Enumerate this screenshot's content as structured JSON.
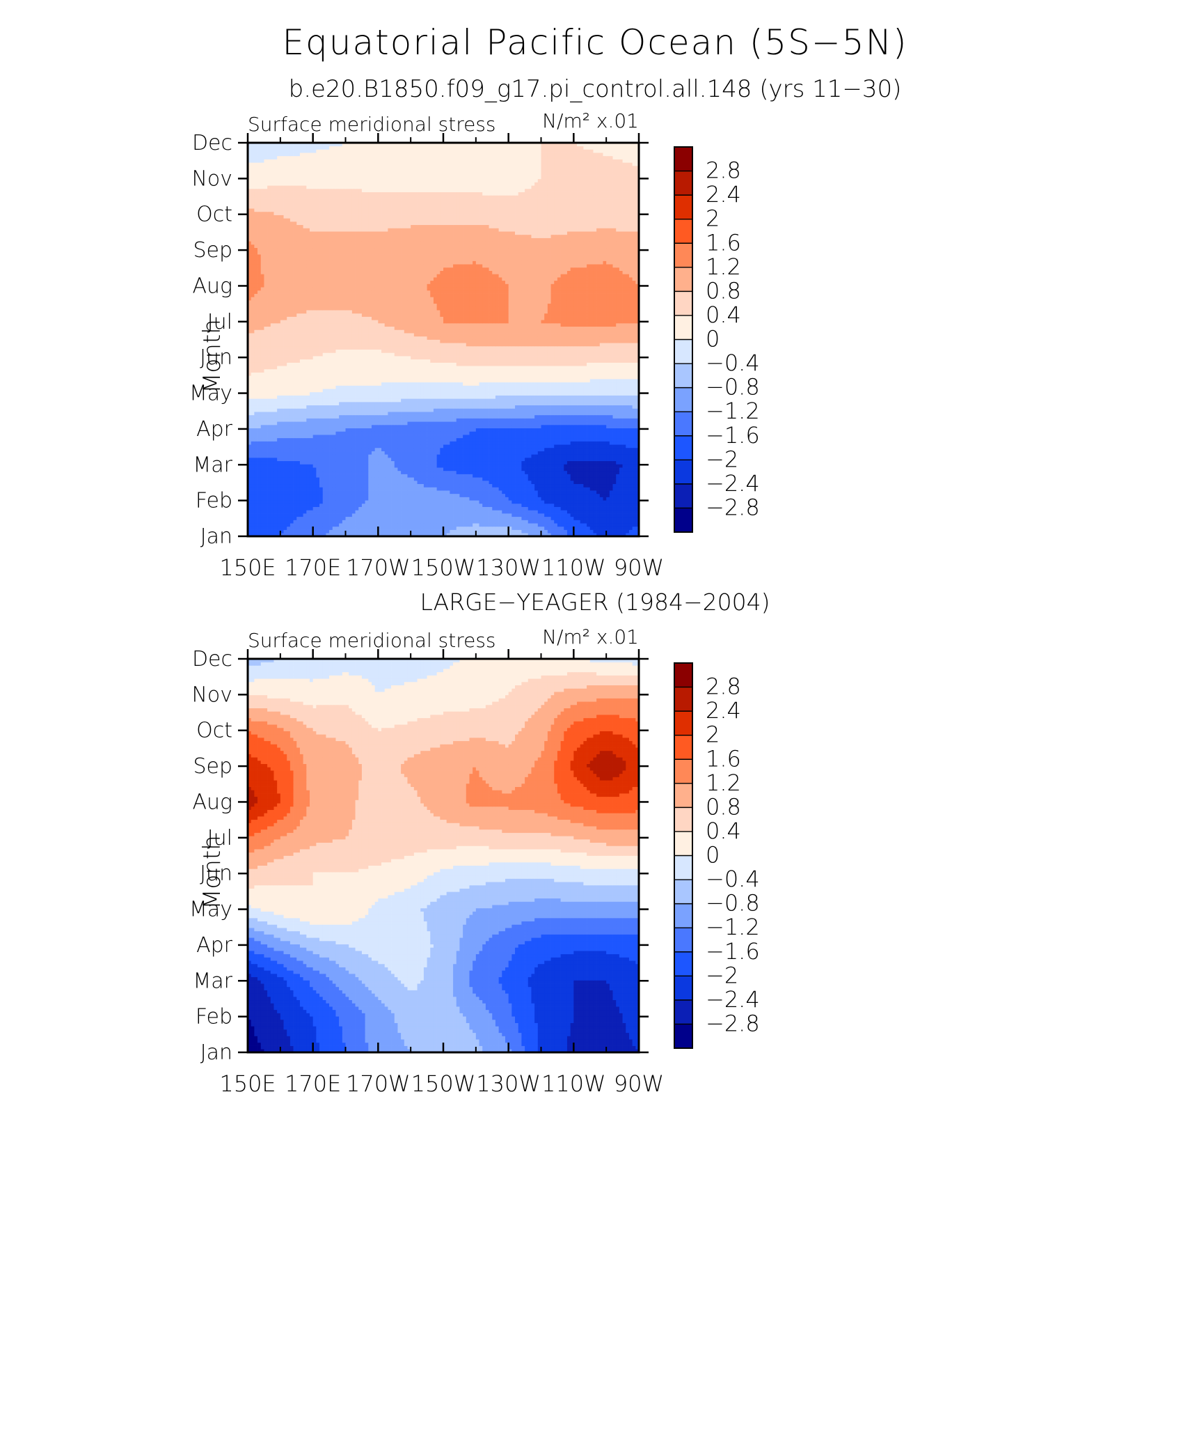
{
  "page": {
    "title": "Equatorial Pacific Ocean (5S−5N)"
  },
  "chart_data": [
    {
      "type": "heatmap",
      "subtitle": "b.e20.B1850.f09_g17.pi_control.all.148 (yrs 11−30)",
      "left_label": "Surface meridional stress",
      "units": "N/m² x.01",
      "ylabel": "Month",
      "xlabel": "",
      "x_ticks": [
        "150E",
        "170E",
        "170W",
        "150W",
        "130W",
        "110W",
        "90W"
      ],
      "x": [
        150,
        160,
        170,
        180,
        190,
        200,
        210,
        220,
        230,
        240,
        250,
        260,
        270
      ],
      "y_ticks": [
        "Jan",
        "Feb",
        "Mar",
        "Apr",
        "May",
        "Jun",
        "Jul",
        "Aug",
        "Sep",
        "Oct",
        "Nov",
        "Dec"
      ],
      "z": [
        [
          -1.7,
          -1.6,
          -1.3,
          -1.0,
          -0.9,
          -0.9,
          -0.8,
          -0.6,
          -0.5,
          -0.9,
          -1.7,
          -2.1,
          -1.9
        ],
        [
          -1.9,
          -1.8,
          -1.7,
          -1.4,
          -1.1,
          -1.0,
          -1.0,
          -1.2,
          -1.6,
          -2.0,
          -2.3,
          -2.4,
          -2.2
        ],
        [
          -1.8,
          -1.7,
          -1.6,
          -1.4,
          -1.1,
          -1.3,
          -1.7,
          -1.8,
          -1.9,
          -2.2,
          -2.5,
          -2.5,
          -2.3
        ],
        [
          -0.8,
          -1.0,
          -1.1,
          -1.2,
          -1.3,
          -1.4,
          -1.5,
          -1.6,
          -1.6,
          -1.7,
          -1.7,
          -1.7,
          -1.6
        ],
        [
          0.2,
          0.1,
          0.0,
          -0.1,
          -0.1,
          -0.2,
          -0.2,
          -0.2,
          -0.3,
          -0.3,
          -0.3,
          -0.3,
          -0.3
        ],
        [
          0.6,
          0.5,
          0.4,
          0.3,
          0.3,
          0.4,
          0.5,
          0.6,
          0.6,
          0.6,
          0.6,
          0.5,
          0.5
        ],
        [
          0.9,
          0.8,
          0.7,
          0.7,
          0.8,
          1.0,
          1.2,
          1.2,
          1.2,
          1.2,
          1.3,
          1.3,
          1.2
        ],
        [
          1.4,
          1.0,
          1.0,
          1.0,
          1.0,
          1.1,
          1.3,
          1.4,
          1.2,
          1.1,
          1.4,
          1.4,
          1.2
        ],
        [
          1.3,
          1.0,
          0.9,
          0.9,
          0.9,
          1.0,
          1.1,
          1.1,
          1.0,
          0.9,
          1.0,
          1.1,
          1.0
        ],
        [
          0.9,
          0.8,
          0.7,
          0.7,
          0.7,
          0.7,
          0.7,
          0.7,
          0.6,
          0.6,
          0.6,
          0.6,
          0.6
        ],
        [
          0.2,
          0.3,
          0.3,
          0.3,
          0.2,
          0.2,
          0.2,
          0.2,
          0.2,
          0.4,
          0.6,
          0.6,
          0.5
        ],
        [
          -0.3,
          -0.2,
          -0.1,
          0.0,
          0.0,
          0.1,
          0.2,
          0.2,
          0.3,
          0.4,
          0.4,
          0.3,
          0.2
        ]
      ],
      "colorbar_labels": [
        "2.8",
        "2.4",
        "2",
        "1.6",
        "1.2",
        "0.8",
        "0.4",
        "0",
        "−0.4",
        "−0.8",
        "−1.2",
        "−1.6",
        "−2",
        "−2.4",
        "−2.8"
      ],
      "levels": [
        -2.8,
        -2.4,
        -2.0,
        -1.6,
        -1.2,
        -0.8,
        -0.4,
        0.0,
        0.4,
        0.8,
        1.2,
        1.6,
        2.0,
        2.4,
        2.8
      ]
    },
    {
      "type": "heatmap",
      "subtitle": "LARGE−YEAGER (1984−2004)",
      "left_label": "Surface meridional stress",
      "units": "N/m² x.01",
      "ylabel": "Month",
      "xlabel": "",
      "x_ticks": [
        "150E",
        "170E",
        "170W",
        "150W",
        "130W",
        "110W",
        "90W"
      ],
      "x": [
        150,
        160,
        170,
        180,
        190,
        200,
        210,
        220,
        230,
        240,
        250,
        260,
        270
      ],
      "y_ticks": [
        "Jan",
        "Feb",
        "Mar",
        "Apr",
        "May",
        "Jun",
        "Jul",
        "Aug",
        "Sep",
        "Oct",
        "Nov",
        "Dec"
      ],
      "z": [
        [
          -3.0,
          -2.6,
          -2.1,
          -1.6,
          -1.0,
          -0.8,
          -0.7,
          -0.7,
          -1.1,
          -2.1,
          -2.5,
          -2.5,
          -2.4
        ],
        [
          -2.8,
          -2.4,
          -2.0,
          -1.5,
          -1.0,
          -0.6,
          -0.6,
          -0.9,
          -1.5,
          -2.1,
          -2.4,
          -2.5,
          -2.3
        ],
        [
          -2.6,
          -2.1,
          -1.5,
          -1.0,
          -0.6,
          -0.3,
          -0.6,
          -1.4,
          -1.7,
          -2.2,
          -2.4,
          -2.4,
          -2.2
        ],
        [
          -1.5,
          -1.0,
          -0.6,
          -0.4,
          -0.2,
          -0.2,
          -0.5,
          -1.1,
          -1.5,
          -1.8,
          -1.9,
          -1.9,
          -1.8
        ],
        [
          -0.1,
          0.2,
          0.4,
          0.3,
          -0.1,
          -0.3,
          -0.6,
          -0.8,
          -0.9,
          -1.0,
          -1.0,
          -1.0,
          -1.0
        ],
        [
          0.7,
          0.5,
          0.4,
          0.4,
          0.3,
          0.2,
          -0.1,
          -0.2,
          -0.3,
          -0.3,
          -0.2,
          -0.1,
          -0.1
        ],
        [
          1.6,
          1.2,
          0.9,
          0.8,
          0.7,
          0.6,
          0.6,
          0.6,
          0.7,
          0.7,
          0.8,
          1.0,
          1.0
        ],
        [
          2.6,
          2.0,
          1.1,
          0.9,
          0.6,
          0.7,
          1.0,
          1.3,
          1.3,
          1.4,
          1.7,
          1.9,
          1.8
        ],
        [
          2.2,
          1.9,
          1.0,
          1.0,
          0.6,
          0.9,
          1.1,
          1.2,
          0.9,
          1.3,
          2.1,
          2.8,
          2.2
        ],
        [
          1.6,
          1.3,
          0.8,
          0.7,
          0.4,
          0.5,
          0.6,
          0.7,
          0.7,
          1.0,
          1.8,
          2.0,
          1.8
        ],
        [
          0.4,
          0.3,
          0.2,
          0.3,
          0.0,
          0.1,
          0.2,
          0.2,
          0.4,
          0.7,
          1.0,
          1.1,
          1.1
        ],
        [
          -0.6,
          -0.4,
          -0.3,
          -0.2,
          -0.1,
          -0.2,
          -0.1,
          0.1,
          0.2,
          0.1,
          0.0,
          -0.1,
          -0.2
        ]
      ],
      "colorbar_labels": [
        "2.8",
        "2.4",
        "2",
        "1.6",
        "1.2",
        "0.8",
        "0.4",
        "0",
        "−0.4",
        "−0.8",
        "−1.2",
        "−1.6",
        "−2",
        "−2.4",
        "−2.8"
      ],
      "levels": [
        -2.8,
        -2.4,
        -2.0,
        -1.6,
        -1.2,
        -0.8,
        -0.4,
        0.0,
        0.4,
        0.8,
        1.2,
        1.6,
        2.0,
        2.4,
        2.8
      ]
    }
  ],
  "colors": {
    "palette": [
      "#00008b",
      "#0b1fb6",
      "#0b39e0",
      "#1d56ff",
      "#4a78ff",
      "#7aa2ff",
      "#a9c6ff",
      "#d7e7ff",
      "#fff0e2",
      "#ffd6c3",
      "#ffb08c",
      "#ff8857",
      "#ff5a22",
      "#df2f00",
      "#b81a00",
      "#8b0000"
    ]
  }
}
